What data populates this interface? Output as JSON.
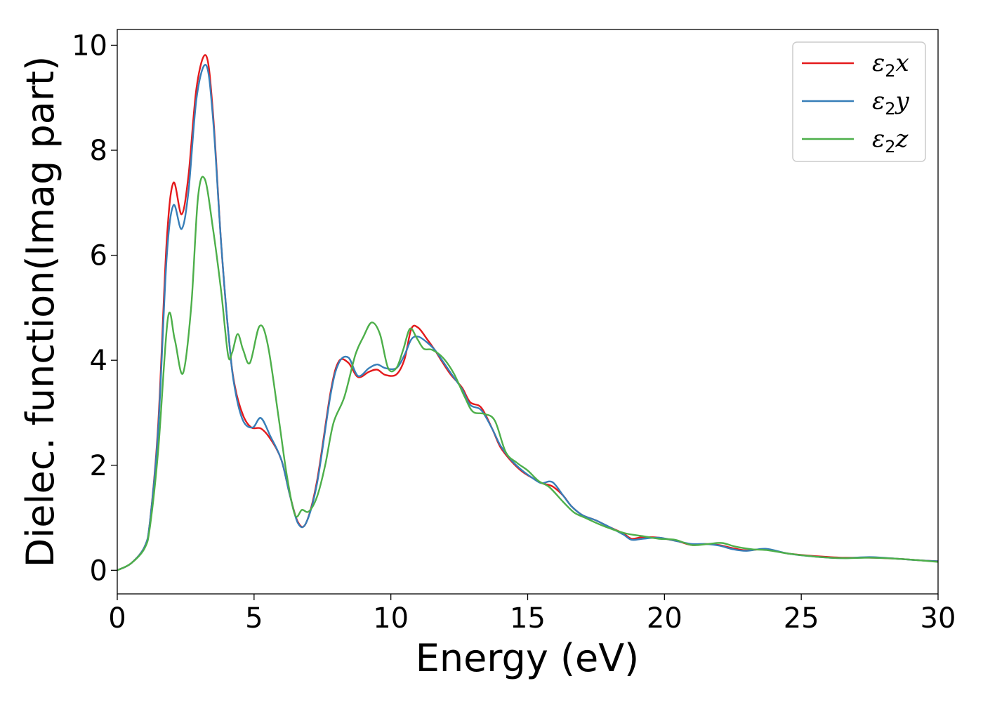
{
  "chart_data": {
    "type": "line",
    "title": "",
    "xlabel": "Energy (eV)",
    "ylabel": "Dielec. function(Imag part)",
    "xlim": [
      0,
      30
    ],
    "ylim": [
      -0.45,
      10.3
    ],
    "xticks": [
      0,
      5,
      10,
      15,
      20,
      25,
      30
    ],
    "yticks": [
      0,
      2,
      4,
      6,
      8,
      10
    ],
    "xtick_labels": [
      "0",
      "5",
      "10",
      "15",
      "20",
      "25",
      "30"
    ],
    "ytick_labels": [
      "0",
      "2",
      "4",
      "6",
      "8",
      "10"
    ],
    "grid": false,
    "legend_position": "top-right",
    "series": [
      {
        "name": "ε2x",
        "legend_base": "ε",
        "legend_sub": "2",
        "legend_suffix": "x",
        "color": "#e41a1c",
        "x": [
          0,
          0.5,
          1.0,
          1.2,
          1.5,
          1.8,
          2.05,
          2.35,
          2.6,
          2.9,
          3.25,
          3.5,
          3.8,
          4.1,
          4.3,
          4.6,
          4.9,
          5.25,
          5.6,
          6.0,
          6.3,
          6.6,
          6.9,
          7.3,
          7.8,
          8.1,
          8.45,
          8.8,
          9.2,
          9.5,
          9.8,
          10.2,
          10.5,
          10.75,
          11.0,
          11.3,
          11.6,
          11.9,
          12.2,
          12.6,
          12.9,
          13.3,
          13.7,
          14.0,
          14.4,
          14.8,
          15.2,
          15.5,
          15.9,
          16.3,
          16.6,
          17.0,
          17.5,
          18.0,
          18.5,
          18.8,
          19.2,
          19.8,
          20.5,
          21.0,
          21.5,
          22.0,
          22.5,
          23.0,
          23.7,
          24.5,
          25.5,
          26.5,
          27.5,
          28.5,
          29.3,
          30
        ],
        "y": [
          0.0,
          0.13,
          0.45,
          0.95,
          2.8,
          6.2,
          7.38,
          6.78,
          7.5,
          9.2,
          9.8,
          8.7,
          6.2,
          4.3,
          3.5,
          2.95,
          2.72,
          2.7,
          2.5,
          2.1,
          1.45,
          0.92,
          0.9,
          1.7,
          3.4,
          3.98,
          3.95,
          3.68,
          3.78,
          3.82,
          3.72,
          3.73,
          4.02,
          4.6,
          4.62,
          4.42,
          4.2,
          3.95,
          3.72,
          3.48,
          3.2,
          3.1,
          2.7,
          2.35,
          2.08,
          1.88,
          1.75,
          1.66,
          1.6,
          1.42,
          1.22,
          1.05,
          0.95,
          0.82,
          0.7,
          0.6,
          0.63,
          0.62,
          0.55,
          0.48,
          0.5,
          0.48,
          0.42,
          0.38,
          0.4,
          0.32,
          0.27,
          0.24,
          0.24,
          0.22,
          0.19,
          0.17
        ]
      },
      {
        "name": "ε2y",
        "legend_base": "ε",
        "legend_sub": "2",
        "legend_suffix": "y",
        "color": "#377eb8",
        "x": [
          0,
          0.5,
          1.0,
          1.2,
          1.5,
          1.8,
          2.05,
          2.35,
          2.6,
          2.9,
          3.25,
          3.5,
          3.8,
          4.1,
          4.3,
          4.6,
          4.95,
          5.25,
          5.6,
          6.0,
          6.3,
          6.6,
          6.9,
          7.3,
          7.8,
          8.1,
          8.45,
          8.8,
          9.2,
          9.5,
          9.8,
          10.2,
          10.5,
          10.75,
          11.0,
          11.3,
          11.6,
          11.9,
          12.2,
          12.6,
          12.9,
          13.3,
          13.7,
          14.0,
          14.4,
          14.8,
          15.2,
          15.5,
          15.9,
          16.3,
          16.6,
          17.0,
          17.5,
          18.0,
          18.5,
          18.8,
          19.2,
          19.8,
          20.5,
          21.0,
          21.5,
          22.0,
          22.5,
          23.0,
          23.7,
          24.5,
          25.5,
          26.5,
          27.5,
          28.5,
          29.3,
          30
        ],
        "y": [
          0.0,
          0.13,
          0.45,
          0.95,
          2.7,
          5.9,
          6.95,
          6.5,
          7.2,
          9.0,
          9.62,
          8.6,
          6.2,
          4.3,
          3.45,
          2.85,
          2.72,
          2.9,
          2.55,
          2.1,
          1.45,
          0.9,
          0.9,
          1.65,
          3.35,
          3.95,
          4.05,
          3.7,
          3.85,
          3.92,
          3.85,
          3.85,
          4.1,
          4.4,
          4.45,
          4.35,
          4.2,
          3.98,
          3.75,
          3.45,
          3.15,
          3.05,
          2.7,
          2.38,
          2.1,
          1.9,
          1.75,
          1.66,
          1.68,
          1.42,
          1.22,
          1.05,
          0.95,
          0.82,
          0.68,
          0.58,
          0.6,
          0.62,
          0.55,
          0.5,
          0.5,
          0.47,
          0.4,
          0.37,
          0.41,
          0.32,
          0.26,
          0.23,
          0.25,
          0.22,
          0.19,
          0.17
        ]
      },
      {
        "name": "ε2z",
        "legend_base": "ε",
        "legend_sub": "2",
        "legend_suffix": "z",
        "color": "#4daf4a",
        "x": [
          0,
          0.5,
          1.0,
          1.2,
          1.5,
          1.85,
          2.1,
          2.4,
          2.7,
          2.95,
          3.2,
          3.5,
          3.8,
          4.05,
          4.2,
          4.4,
          4.6,
          4.85,
          5.2,
          5.5,
          5.9,
          6.2,
          6.5,
          6.75,
          7.0,
          7.3,
          7.6,
          7.9,
          8.3,
          8.7,
          9.0,
          9.3,
          9.6,
          9.9,
          10.2,
          10.45,
          10.7,
          10.95,
          11.2,
          11.5,
          11.9,
          12.3,
          12.7,
          13.0,
          13.4,
          13.8,
          14.2,
          14.6,
          15.0,
          15.4,
          15.8,
          16.3,
          16.7,
          17.1,
          17.6,
          18.1,
          18.6,
          19.2,
          19.8,
          20.4,
          21.0,
          21.6,
          22.1,
          22.6,
          23.2,
          23.8,
          24.5,
          25.5,
          26.5,
          27.5,
          28.5,
          29.3,
          30
        ],
        "y": [
          0.0,
          0.13,
          0.42,
          0.85,
          2.3,
          4.8,
          4.4,
          3.75,
          5.0,
          7.1,
          7.45,
          6.5,
          5.3,
          4.1,
          4.15,
          4.5,
          4.2,
          3.95,
          4.65,
          4.3,
          2.9,
          1.8,
          1.05,
          1.15,
          1.12,
          1.4,
          2.0,
          2.8,
          3.3,
          4.1,
          4.45,
          4.72,
          4.5,
          3.85,
          3.85,
          4.2,
          4.6,
          4.42,
          4.22,
          4.2,
          4.05,
          3.75,
          3.3,
          3.02,
          2.98,
          2.85,
          2.25,
          2.05,
          1.9,
          1.7,
          1.58,
          1.3,
          1.1,
          1.0,
          0.88,
          0.78,
          0.7,
          0.65,
          0.6,
          0.58,
          0.48,
          0.5,
          0.52,
          0.45,
          0.4,
          0.38,
          0.32,
          0.26,
          0.23,
          0.24,
          0.22,
          0.19,
          0.16
        ]
      }
    ]
  }
}
